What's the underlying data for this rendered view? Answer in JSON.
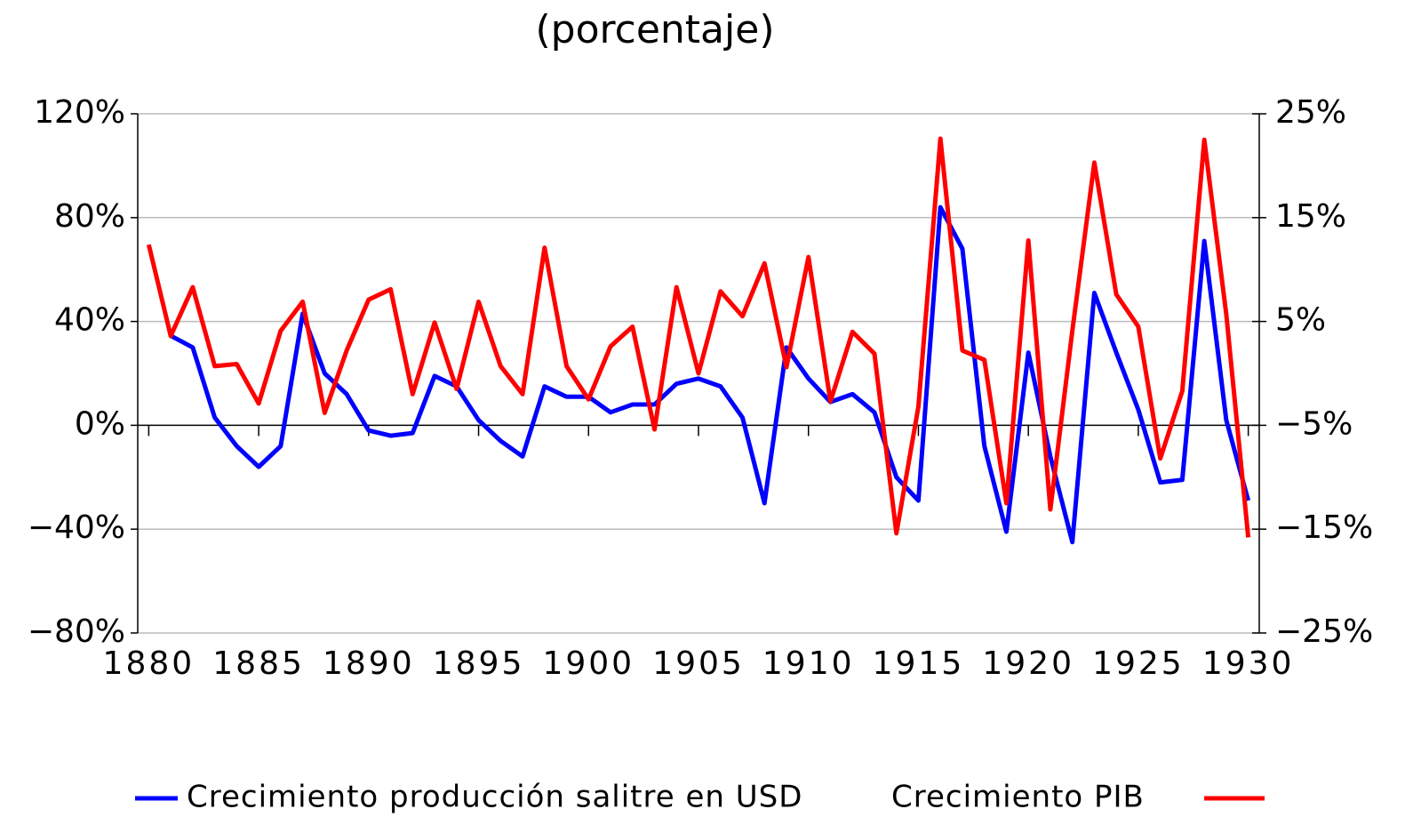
{
  "chart_data": {
    "type": "line",
    "title": "(porcentaje)",
    "x": [
      1880,
      1881,
      1882,
      1883,
      1884,
      1885,
      1886,
      1887,
      1888,
      1889,
      1890,
      1891,
      1892,
      1893,
      1894,
      1895,
      1896,
      1897,
      1898,
      1899,
      1900,
      1901,
      1902,
      1903,
      1904,
      1905,
      1906,
      1907,
      1908,
      1909,
      1910,
      1911,
      1912,
      1913,
      1914,
      1915,
      1916,
      1917,
      1918,
      1919,
      1920,
      1921,
      1922,
      1923,
      1924,
      1925,
      1926,
      1927,
      1928,
      1929,
      1930
    ],
    "xlim": [
      1879.5,
      1930.5
    ],
    "xticks": [
      1880,
      1885,
      1890,
      1895,
      1900,
      1905,
      1910,
      1915,
      1920,
      1925,
      1930
    ],
    "ylim": [
      -80,
      120
    ],
    "yticks": [
      {
        "value": -80,
        "label": "−80%"
      },
      {
        "value": -40,
        "label": "−40%"
      },
      {
        "value": 0,
        "label": "0%"
      },
      {
        "value": 40,
        "label": "40%"
      },
      {
        "value": 80,
        "label": "80%"
      },
      {
        "value": 120,
        "label": "120%"
      }
    ],
    "y2lim": [
      -25,
      25
    ],
    "y2ticks": [
      {
        "value": -25,
        "label": "−25%"
      },
      {
        "value": -15,
        "label": "−15%"
      },
      {
        "value": -5,
        "label": "−5%"
      },
      {
        "value": 5,
        "label": "5%"
      },
      {
        "value": 15,
        "label": "15%"
      },
      {
        "value": 25,
        "label": "25%"
      }
    ],
    "grid": true,
    "series": [
      {
        "name": "Crecimiento producción salitre en USD",
        "color": "#0000ff",
        "axis": "y",
        "values": [
          null,
          34.5,
          30,
          3,
          -8,
          -16,
          -8,
          43,
          20,
          12,
          -2,
          -4,
          -3,
          19,
          15,
          2,
          -6,
          -12,
          15,
          11,
          11,
          5,
          8,
          8,
          16,
          18,
          15,
          3,
          -30,
          30,
          18,
          9,
          12,
          5,
          -20,
          -29,
          84,
          68,
          -8,
          -41,
          28,
          -12,
          -45,
          51,
          28,
          6,
          -22,
          -21,
          71,
          2,
          -29
        ]
      },
      {
        "name": "Crecimiento PIB",
        "color": "#ff0000",
        "axis": "y2",
        "values": [
          12.4,
          3.6,
          8.3,
          0.7,
          0.9,
          -2.9,
          4.1,
          6.9,
          -3.8,
          2.2,
          7.1,
          8.1,
          -2,
          4.9,
          -1.5,
          6.9,
          0.7,
          -2,
          12.1,
          0.7,
          -2.5,
          2.6,
          4.5,
          -5.4,
          8.3,
          0,
          7.9,
          5.5,
          10.6,
          0.6,
          11.2,
          -2.7,
          4,
          1.9,
          -15.4,
          -3.2,
          22.6,
          2.2,
          1.3,
          -12.5,
          12.8,
          -13.1,
          4.1,
          20.3,
          7.6,
          4.5,
          -8.2,
          -1.7,
          22.5,
          5.7,
          -15.8
        ]
      }
    ]
  }
}
